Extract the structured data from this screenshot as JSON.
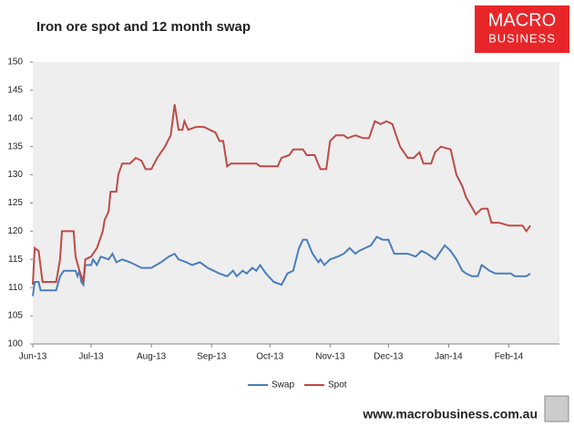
{
  "chart_data": {
    "type": "line",
    "title": "Iron ore spot and 12 month swap",
    "xlim": [
      0,
      271
    ],
    "xticks": [
      {
        "value": 0,
        "label": "Jun-13"
      },
      {
        "value": 30,
        "label": "Jul-13"
      },
      {
        "value": 61,
        "label": "Aug-13"
      },
      {
        "value": 92,
        "label": "Sep-13"
      },
      {
        "value": 122,
        "label": "Oct-13"
      },
      {
        "value": 153,
        "label": "Nov-13"
      },
      {
        "value": 183,
        "label": "Dec-13"
      },
      {
        "value": 214,
        "label": "Jan-14"
      },
      {
        "value": 245,
        "label": "Feb-14"
      }
    ],
    "ylim": [
      100,
      150
    ],
    "yticks": [
      100,
      105,
      110,
      115,
      120,
      125,
      130,
      135,
      140,
      145,
      150
    ],
    "legend": "bottom",
    "series": [
      {
        "name": "Swap",
        "color": "#4a7ebb",
        "x": [
          0,
          1,
          3,
          4,
          12,
          14,
          16,
          22,
          23,
          24,
          25,
          26,
          27,
          30,
          31,
          33,
          35,
          39,
          41,
          43,
          46,
          50,
          53,
          56,
          61,
          66,
          70,
          73,
          75,
          79,
          82,
          86,
          90,
          93,
          96,
          100,
          103,
          105,
          108,
          110,
          113,
          115,
          117,
          120,
          124,
          128,
          131,
          134,
          137,
          139,
          141,
          144,
          147,
          148,
          150,
          153,
          157,
          160,
          163,
          166,
          168,
          171,
          174,
          177,
          180,
          183,
          186,
          190,
          193,
          197,
          200,
          203,
          207,
          212,
          215,
          218,
          221,
          223,
          226,
          229,
          231,
          235,
          238,
          243,
          246,
          248,
          252,
          254,
          256
        ],
        "values": [
          108.5,
          111,
          111,
          109.5,
          109.5,
          112,
          113,
          113,
          112,
          113,
          111,
          110.5,
          114,
          114,
          115,
          114,
          115.5,
          115,
          116,
          114.5,
          115,
          114.5,
          114,
          113.5,
          113.5,
          114.5,
          115.5,
          116,
          115,
          114.5,
          114,
          114.5,
          113.5,
          113,
          112.5,
          112,
          113,
          112,
          113,
          112.5,
          113.5,
          113,
          114,
          112.5,
          111,
          110.5,
          112.5,
          113,
          117,
          118.5,
          118.5,
          116,
          114.5,
          115,
          114,
          115,
          115.5,
          116,
          117,
          116,
          116.5,
          117,
          117.5,
          119,
          118.5,
          118.5,
          116,
          116,
          116,
          115.5,
          116.5,
          116,
          115,
          117.5,
          116.5,
          115,
          113,
          112.5,
          112,
          112,
          114,
          113,
          112.5,
          112.5,
          112.5,
          112,
          112,
          112,
          112.5
        ]
      },
      {
        "name": "Spot",
        "color": "#be4b48",
        "x": [
          0,
          1,
          3,
          5,
          12,
          14,
          15,
          21,
          22,
          24,
          26,
          27,
          30,
          33,
          36,
          37,
          39,
          40,
          43,
          44,
          46,
          50,
          53,
          56,
          58,
          61,
          64,
          68,
          71,
          73,
          75,
          77,
          78,
          80,
          84,
          88,
          91,
          94,
          96,
          98,
          100,
          102,
          115,
          117,
          126,
          128,
          132,
          134,
          139,
          141,
          145,
          148,
          151,
          153,
          156,
          160,
          162,
          166,
          170,
          173,
          176,
          179,
          182,
          185,
          187,
          189,
          193,
          196,
          199,
          201,
          205,
          207,
          210,
          215,
          218,
          221,
          223,
          228,
          231,
          234,
          236,
          240,
          245,
          252,
          254,
          256
        ],
        "values": [
          110.5,
          117,
          116.5,
          111,
          111,
          115,
          120,
          120,
          115.5,
          113,
          111,
          115,
          115.5,
          117,
          120,
          122,
          123.5,
          127,
          127,
          130,
          132,
          132,
          133,
          132.5,
          131,
          131,
          133,
          135,
          137,
          142.5,
          138,
          138,
          139.5,
          138,
          138.5,
          138.5,
          138,
          137.5,
          136,
          136,
          131.5,
          132,
          132,
          131.5,
          131.5,
          133,
          133.5,
          134.5,
          134.5,
          133.5,
          133.5,
          131,
          131,
          136,
          137,
          137,
          136.5,
          137,
          136.5,
          136.5,
          139.5,
          139,
          139.5,
          139,
          137,
          135,
          133,
          133,
          134,
          132,
          132,
          134,
          135,
          134.5,
          130,
          128,
          126,
          123,
          124,
          124,
          121.5,
          121.5,
          121,
          121,
          120,
          121
        ]
      }
    ]
  },
  "logo": {
    "line1": "MACRO",
    "line2": "BUSINESS"
  },
  "footer": "www.macrobusiness.com.au"
}
